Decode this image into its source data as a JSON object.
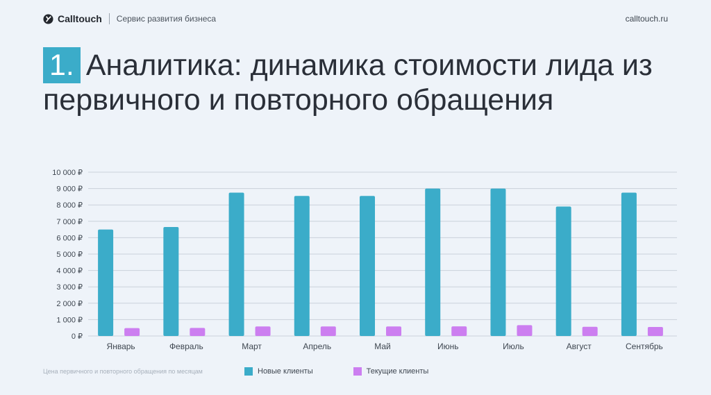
{
  "header": {
    "brand": "Calltouch",
    "tagline": "Сервис развития бизнеса",
    "site": "calltouch.ru",
    "logo_icon": "calltouch-logo-icon"
  },
  "title": {
    "number": "1.",
    "text": "Аналитика: динамика стоимости лида из первичного и повторного обращения"
  },
  "legend": {
    "caption": "Цена первичного и повторного обращения по месяцам"
  },
  "colors": {
    "new_clients": "#3bacc9",
    "current_clients": "#cc7ef0",
    "accent": "#3bacc9"
  },
  "chart_data": {
    "type": "bar",
    "categories": [
      "Январь",
      "Февраль",
      "Март",
      "Апрель",
      "Май",
      "Июнь",
      "Июль",
      "Август",
      "Сентябрь"
    ],
    "series": [
      {
        "name": "Новые клиенты",
        "values": [
          6500,
          6650,
          8750,
          8550,
          8550,
          9000,
          9000,
          7900,
          8750
        ]
      },
      {
        "name": "Текущие клиенты",
        "values": [
          480,
          490,
          580,
          580,
          580,
          590,
          660,
          560,
          550
        ]
      }
    ],
    "ylim": [
      0,
      10000
    ],
    "yticks": [
      "0 ₽",
      "1 000 ₽",
      "2 000 ₽",
      "3 000 ₽",
      "4 000 ₽",
      "5 000 ₽",
      "6 000 ₽",
      "7 000 ₽",
      "8 000 ₽",
      "9 000 ₽",
      "10 000 ₽"
    ],
    "grid": true,
    "legend_position": "bottom"
  }
}
